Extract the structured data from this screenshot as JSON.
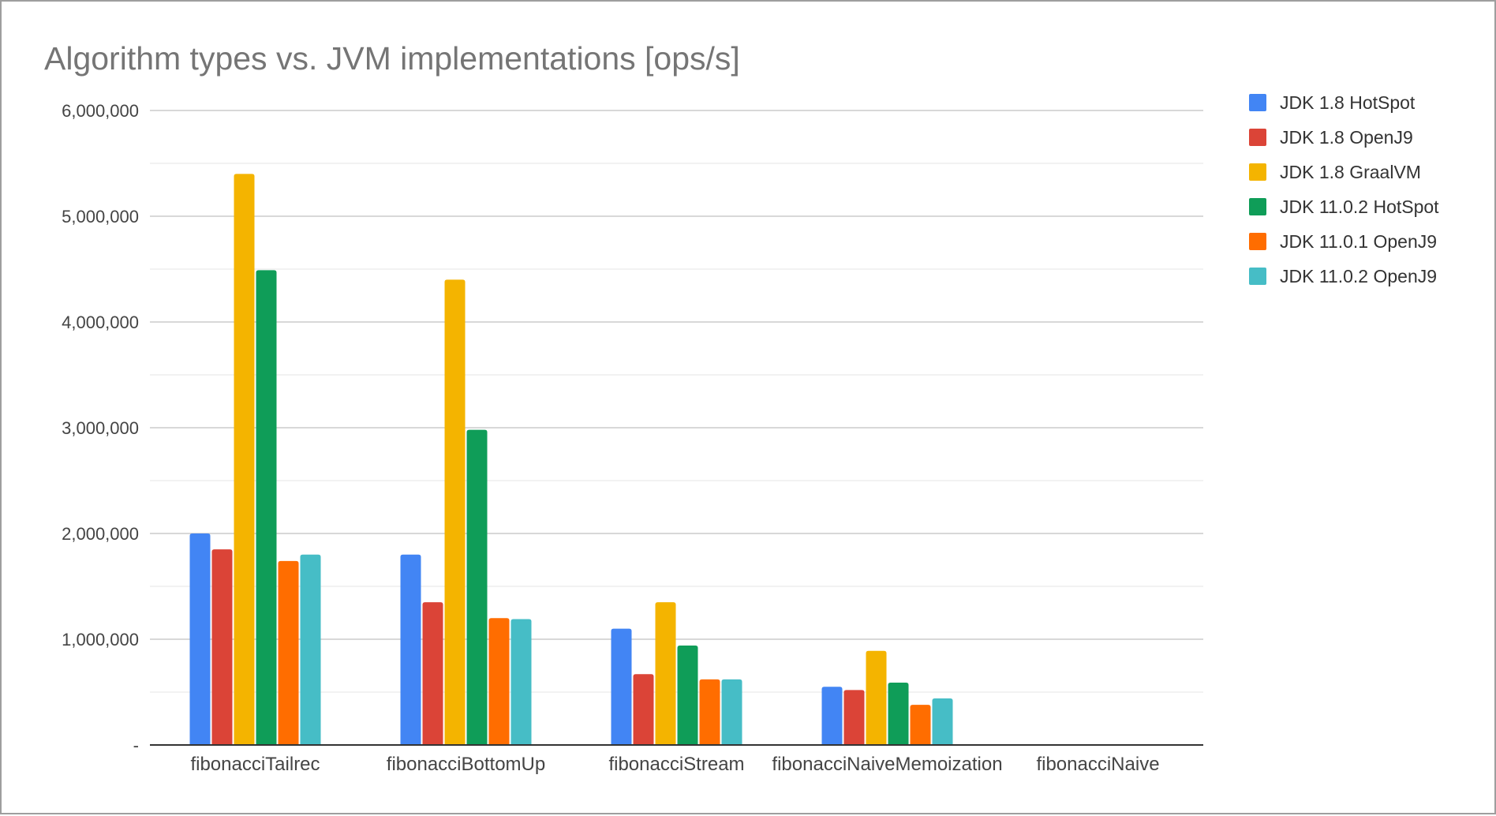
{
  "chart_data": {
    "type": "bar",
    "title": "Algorithm types vs. JVM implementations [ops/s]",
    "xlabel": "",
    "ylabel": "",
    "ylim": [
      0,
      6000000
    ],
    "y_ticks": [
      0,
      1000000,
      2000000,
      3000000,
      4000000,
      5000000,
      6000000
    ],
    "y_tick_labels": [
      "-",
      "1,000,000",
      "2,000,000",
      "3,000,000",
      "4,000,000",
      "5,000,000",
      "6,000,000"
    ],
    "grid": true,
    "legend_position": "right",
    "categories": [
      "fibonacciTailrec",
      "fibonacciBottomUp",
      "fibonacciStream",
      "fibonacciNaiveMemoization",
      "fibonacciNaive"
    ],
    "series": [
      {
        "name": "JDK 1.8 HotSpot",
        "color": "#4285f4",
        "values": [
          2000000,
          1800000,
          1100000,
          550000,
          0
        ]
      },
      {
        "name": "JDK 1.8 OpenJ9",
        "color": "#db4437",
        "values": [
          1850000,
          1350000,
          670000,
          520000,
          0
        ]
      },
      {
        "name": "JDK 1.8 GraalVM",
        "color": "#f4b400",
        "values": [
          5400000,
          4400000,
          1350000,
          890000,
          0
        ]
      },
      {
        "name": "JDK 11.0.2 HotSpot",
        "color": "#0f9d58",
        "values": [
          4490000,
          2980000,
          940000,
          590000,
          0
        ]
      },
      {
        "name": "JDK 11.0.1 OpenJ9",
        "color": "#ff6d00",
        "values": [
          1740000,
          1200000,
          620000,
          380000,
          0
        ]
      },
      {
        "name": "JDK 11.0.2 OpenJ9",
        "color": "#46bdc6",
        "values": [
          1800000,
          1190000,
          620000,
          440000,
          0
        ]
      }
    ]
  }
}
